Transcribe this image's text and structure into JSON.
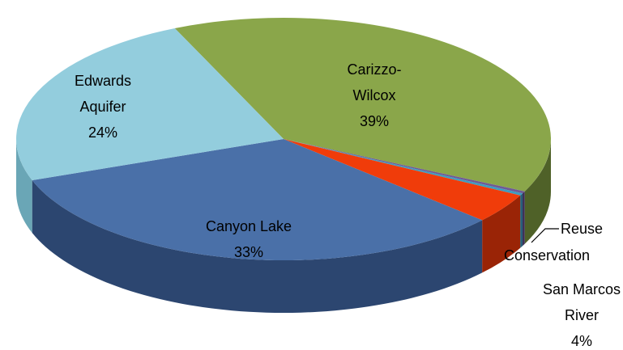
{
  "chart_data": {
    "type": "pie3d",
    "categories": [
      "Carizzo-Wilcox",
      "Reuse",
      "Conservation",
      "San Marcos River",
      "Canyon Lake",
      "Edwards Aquifer"
    ],
    "values": [
      39,
      0.3,
      0.3,
      4,
      33,
      24
    ],
    "value_labels": [
      "39%",
      null,
      null,
      "4%",
      "33%",
      "24%"
    ],
    "colors": [
      "#8aa64a",
      "#6f5a96",
      "#3d9cc0",
      "#f03c0a",
      "#4a70a8",
      "#93cddd"
    ],
    "side_colors": [
      "#4f6128",
      "#3f3058",
      "#24607a",
      "#9a2406",
      "#2c4670",
      "#6aa6b6"
    ]
  }
}
